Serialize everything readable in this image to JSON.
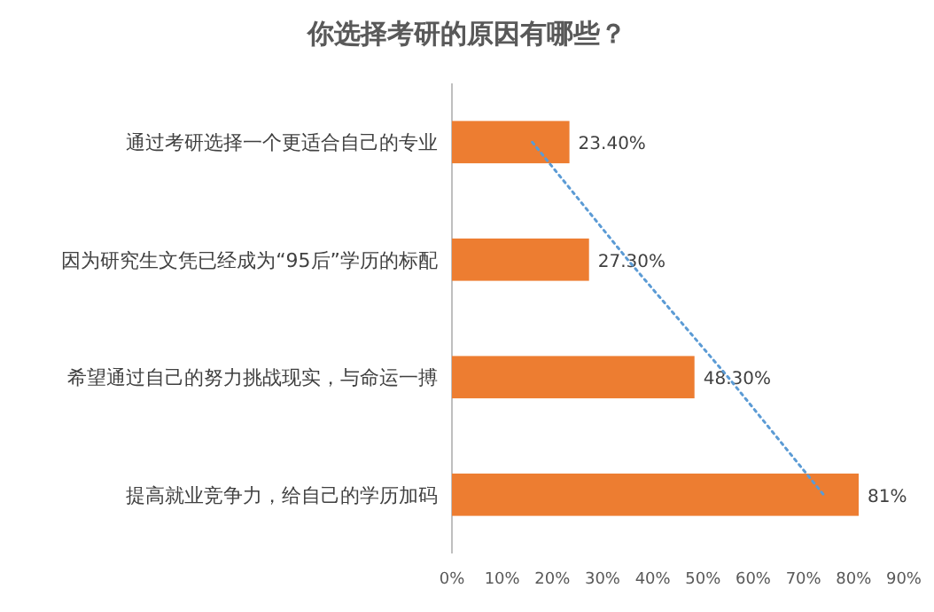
{
  "chart_data": {
    "type": "bar",
    "orientation": "horizontal",
    "title": "你选择考研的原因有哪些？",
    "categories": [
      "通过考研选择一个更适合自己的专业",
      "因为研究生文凭已经成为“95后”学历的标配",
      "希望通过自己的努力挑战现实，与命运一搏",
      "提高就业竞争力，给自己的学历加码"
    ],
    "series": [
      {
        "color": "#ed7d31",
        "values": [
          23.4,
          27.3,
          48.3,
          81
        ],
        "value_labels": [
          "23.40%",
          "27.30%",
          "48.30%",
          "81%"
        ]
      },
      {
        "type": "line",
        "color": "#5b9bd5",
        "values": [
          16,
          35,
          55,
          74
        ],
        "line_style": "dotted"
      }
    ],
    "xlim": [
      0,
      90
    ],
    "xticks": [
      {
        "value": 0,
        "label": "0%"
      },
      {
        "value": 10,
        "label": "10%"
      },
      {
        "value": 20,
        "label": "20%"
      },
      {
        "value": 30,
        "label": "30%"
      },
      {
        "value": 40,
        "label": "40%"
      },
      {
        "value": 50,
        "label": "50%"
      },
      {
        "value": 60,
        "label": "60%"
      },
      {
        "value": 70,
        "label": "70%"
      },
      {
        "value": 80,
        "label": "80%"
      },
      {
        "value": 90,
        "label": "90%"
      }
    ],
    "grid": false
  }
}
